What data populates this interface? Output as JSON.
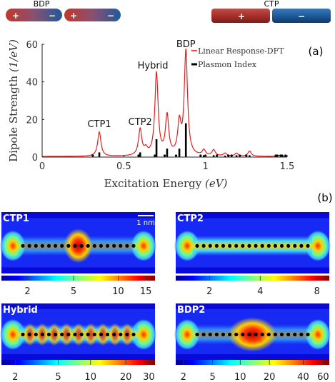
{
  "dimer_labels": {
    "left": "BDP",
    "right": "CTP"
  },
  "charge_signs": {
    "plus": "+",
    "minus": "−"
  },
  "panel_labels": {
    "a": "(a)",
    "b": "(b)"
  },
  "chart_data": {
    "type": "line",
    "xlabel_text": "Excitation Energy ",
    "xlabel_unit": "(eV)",
    "ylabel_text": "Dipole Strength ",
    "ylabel_unit": "(1/eV)",
    "xlim": [
      0,
      1.5
    ],
    "ylim": [
      0,
      60
    ],
    "x_ticks": [
      0,
      0.5,
      1,
      1.5
    ],
    "x_tick_labels": [
      "0",
      "0.5",
      "1",
      "1.5"
    ],
    "y_ticks": [
      0,
      20,
      40,
      60
    ],
    "y_tick_labels": [
      "0",
      "20",
      "40",
      "60"
    ],
    "legend_position": "top-right",
    "series": [
      {
        "name": "Linear Response-DFT",
        "color": "#e02020",
        "kind": "line",
        "baseline": 0.3,
        "width": 0.012,
        "peaks": [
          [
            0.35,
            13.0
          ],
          [
            0.6,
            14.0
          ],
          [
            0.635,
            3.0
          ],
          [
            0.7,
            44.0
          ],
          [
            0.765,
            21.0
          ],
          [
            0.84,
            16.5
          ],
          [
            0.88,
            55.5
          ],
          [
            0.99,
            3.0
          ],
          [
            1.05,
            3.2
          ],
          [
            1.12,
            1.5
          ],
          [
            1.19,
            1.6
          ],
          [
            1.27,
            2.8
          ],
          [
            1.45,
            0.6
          ]
        ]
      },
      {
        "name": "Plasmon Index",
        "color": "#000000",
        "kind": "stick",
        "sticks": [
          [
            0.35,
            2.5
          ],
          [
            0.6,
            2.5
          ],
          [
            0.7,
            9.5
          ],
          [
            0.765,
            4.5
          ],
          [
            0.84,
            4.5
          ],
          [
            0.88,
            18.0
          ],
          [
            0.99,
            1.0
          ],
          [
            1.05,
            1.0
          ],
          [
            1.12,
            0.8
          ],
          [
            1.19,
            1.0
          ],
          [
            1.27,
            1.0
          ]
        ],
        "dots": [
          0.31,
          0.59,
          0.69,
          0.75,
          0.82,
          0.97,
          1.0,
          1.07,
          1.14,
          1.16,
          1.21,
          1.25,
          1.43,
          1.44,
          1.46,
          1.47,
          1.49
        ]
      }
    ],
    "annotations": [
      {
        "text": "CTP1",
        "x": 0.35,
        "y": 13.0
      },
      {
        "text": "CTP2",
        "x": 0.6,
        "y": 14.0
      },
      {
        "text": "Hybrid",
        "x": 0.7,
        "y": 44.0
      },
      {
        "text": "BDP",
        "x": 0.88,
        "y": 55.5
      }
    ]
  },
  "maps": [
    {
      "title": "CTP1",
      "scale_label": "1 nm",
      "ticks": [
        [
          "2",
          0.17
        ],
        [
          "5",
          0.47
        ],
        [
          "10",
          0.76
        ],
        [
          "15",
          0.94
        ]
      ]
    },
    {
      "title": "CTP2",
      "scale_label": "",
      "ticks": [
        [
          "2",
          0.22
        ],
        [
          "4",
          0.55
        ],
        [
          "8",
          0.92
        ]
      ]
    },
    {
      "title": "Hybrid",
      "scale_label": "",
      "ticks": [
        [
          "2",
          0.09
        ],
        [
          "5",
          0.37
        ],
        [
          "10",
          0.58
        ],
        [
          "20",
          0.81
        ],
        [
          "30",
          0.96
        ]
      ]
    },
    {
      "title": "BDP2",
      "scale_label": "",
      "ticks": [
        [
          "2",
          0.05
        ],
        [
          "5",
          0.24
        ],
        [
          "10",
          0.42
        ],
        [
          "20",
          0.61
        ],
        [
          "40",
          0.83
        ],
        [
          "60",
          0.96
        ]
      ]
    }
  ]
}
